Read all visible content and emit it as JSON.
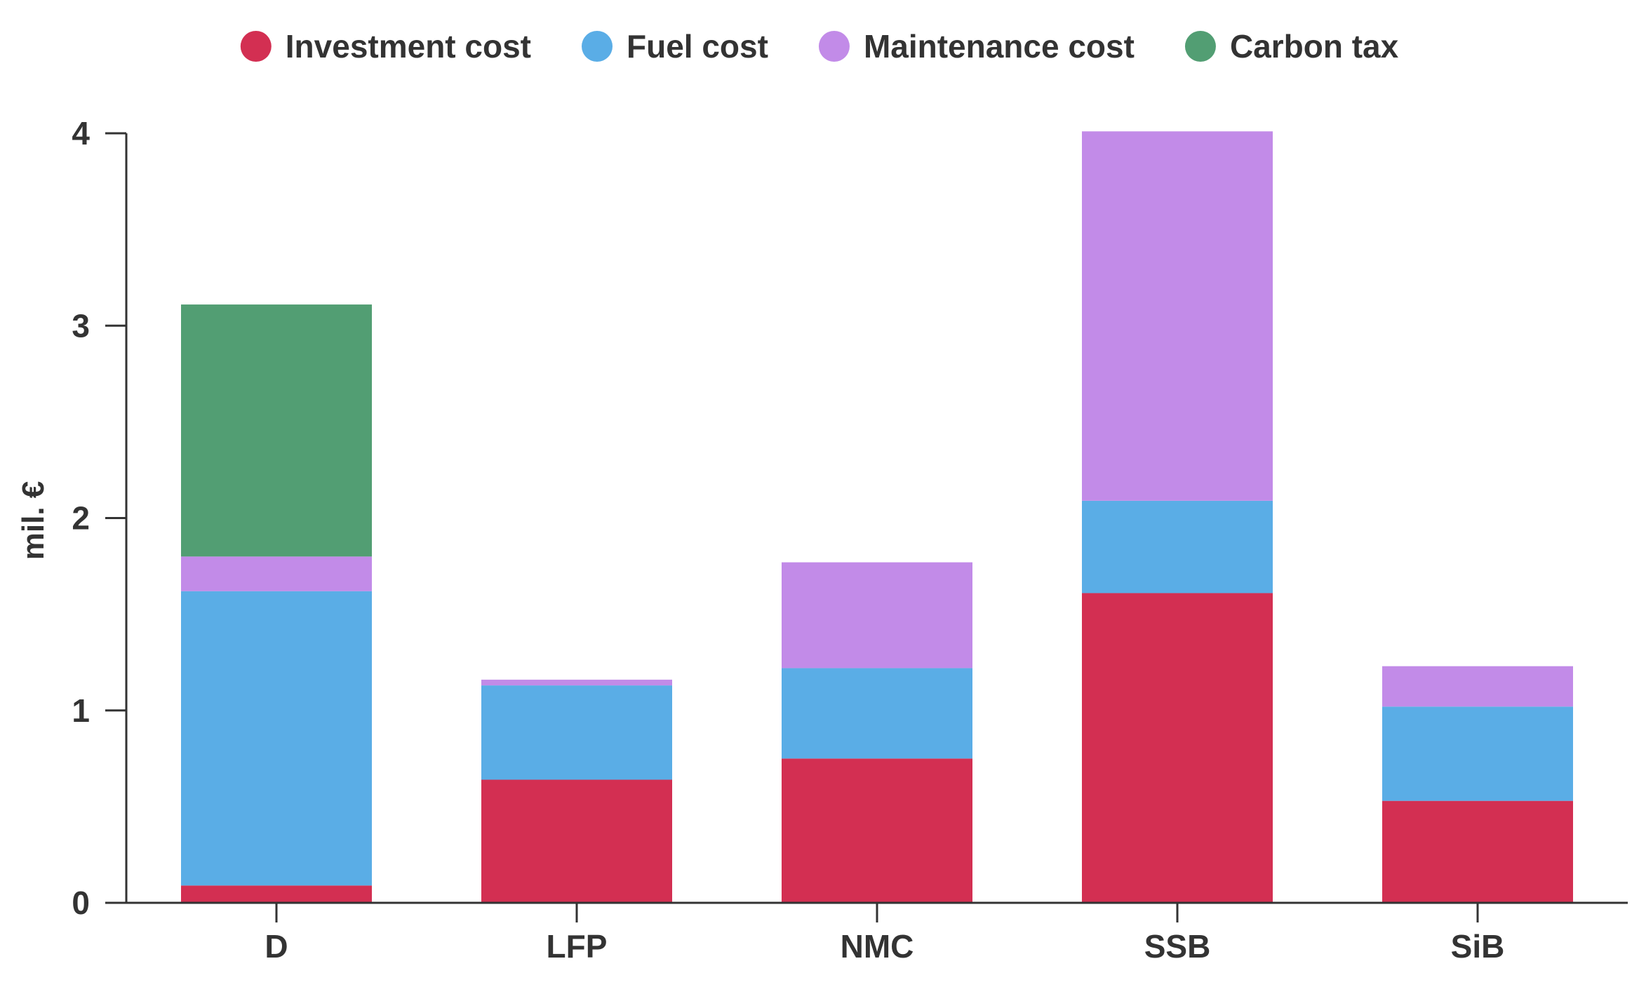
{
  "chart_data": {
    "type": "bar",
    "stacked": true,
    "categories": [
      "D",
      "LFP",
      "NMC",
      "SSB",
      "SiB"
    ],
    "series": [
      {
        "name": "Investment cost",
        "color": "#d32f52",
        "values": [
          0.09,
          0.64,
          0.75,
          1.61,
          0.53
        ]
      },
      {
        "name": "Fuel cost",
        "color": "#5aade6",
        "values": [
          1.53,
          0.49,
          0.47,
          0.48,
          0.49
        ]
      },
      {
        "name": "Maintenance cost",
        "color": "#c28be8",
        "values": [
          0.18,
          0.03,
          0.55,
          1.92,
          0.21
        ]
      },
      {
        "name": "Carbon tax",
        "color": "#529e73",
        "values": [
          1.31,
          0,
          0,
          0,
          0
        ]
      }
    ],
    "xlabel": "",
    "ylabel": "mil. €",
    "ylim": [
      0,
      4
    ],
    "yticks": [
      0,
      1,
      2,
      3,
      4
    ],
    "grid": false,
    "legend_position": "top-center",
    "axis_color": "#333333"
  }
}
